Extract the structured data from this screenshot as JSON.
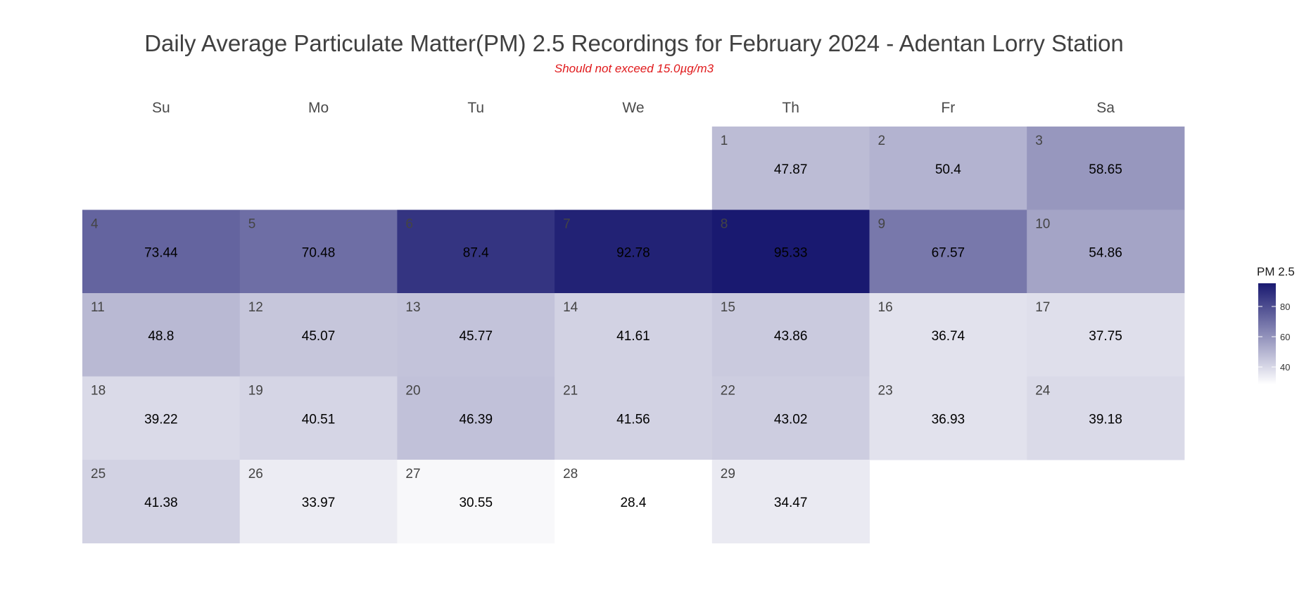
{
  "title": "Daily Average Particulate Matter(PM) 2.5 Recordings for February 2024 - Adentan Lorry Station",
  "subtitle": "Should not exceed 15.0µg/m3",
  "chart_data": {
    "type": "heatmap",
    "layout": "calendar",
    "month": "February 2024",
    "first_weekday_index": 4,
    "weekdays": [
      "Su",
      "Mo",
      "Tu",
      "We",
      "Th",
      "Fr",
      "Sa"
    ],
    "days": [
      1,
      2,
      3,
      4,
      5,
      6,
      7,
      8,
      9,
      10,
      11,
      12,
      13,
      14,
      15,
      16,
      17,
      18,
      19,
      20,
      21,
      22,
      23,
      24,
      25,
      26,
      27,
      28,
      29
    ],
    "values": [
      47.87,
      50.4,
      58.65,
      73.44,
      70.48,
      87.4,
      92.78,
      95.33,
      67.57,
      54.86,
      48.8,
      45.07,
      45.77,
      41.61,
      43.86,
      36.74,
      37.75,
      39.22,
      40.51,
      46.39,
      41.56,
      43.02,
      36.93,
      39.18,
      41.38,
      33.97,
      30.55,
      28.4,
      34.47
    ],
    "legend": {
      "title": "PM 2.5",
      "ticks": [
        40,
        60,
        80
      ],
      "range": [
        28.4,
        95.33
      ],
      "color_low": "#ffffff",
      "color_high": "#191970"
    }
  }
}
